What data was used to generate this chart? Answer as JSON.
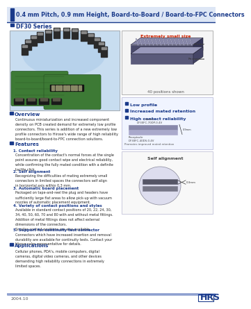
{
  "title_line1": "0.4 mm Pitch, 0.9 mm Height, Board-to-Board / Board-to-FPC Connectors",
  "series_label": "DF30 Series",
  "header_bg": "#1a3a8a",
  "section_square_color": "#1a3a8a",
  "overview_title": "Overview",
  "overview_text": "Continuous miniaturization and increased component\ndensity on PCB created demand for extremely low profile\nconnectors. This series is addition of a new extremely low\nprofile connectors to Hirose's wide range of high reliability\nboard-to-board/board-to-FPC connection solutions.",
  "features_title": "Features",
  "features": [
    {
      "num": "1.",
      "title": "Contact reliability",
      "text": "Concentration of the contact's normal forces at the single\npoint assures good contact wipe and electrical reliability,\nwhile confirming the fully mated condition with a definite\ntactile click."
    },
    {
      "num": "2.",
      "title": "Self alignment",
      "text": "Recognizing the difficulties of mating extremely small\nconnectors in limited spaces the connectors self align\nin horizontal axis within 0.3 mm."
    },
    {
      "num": "3.",
      "title": "Automatic board placement",
      "text": "Packaged on tape-and-reel the plug and headers have\nsufficiently large flat areas to allow pick-up with vacuum\nnozzles of automatic placement equipment."
    },
    {
      "num": "4.",
      "title": "Variety of contact positions and styles",
      "text": "Available in standard contact positions of 20, 22, 24, 30,\n34, 40, 50, 60, 70 and 80 with and without metal fittings.\nAddition of metal fittings does not affect external\ndimensions of the connectors.\nSmaller contact positions are also available."
    },
    {
      "num": "5.",
      "title": "Support for continuity test connector",
      "text": "Connectors which have increased insertion and removal\ndurability are available for continuity tests. Contact your\nHirose sales representative for details."
    }
  ],
  "applications_title": "Applications",
  "applications_text": "Cellular phones, PDA's, mobile computers, digital\ncameras, digital video cameras, and other devices\ndemanding high reliability connections in extremely\nlimited spaces.",
  "right_features": [
    "Low profile",
    "Increased mated retention",
    "High contact reliability"
  ],
  "img_caption": "40 positions shown",
  "extremely_small": "Extremely small size",
  "self_align_label": "Self alignment",
  "footer_text": "2004.10",
  "footer_brand": "HRS",
  "bg_color": "#ffffff",
  "left_panel_bg": "#c8ddf0",
  "header_accent_color": "#3355aa"
}
